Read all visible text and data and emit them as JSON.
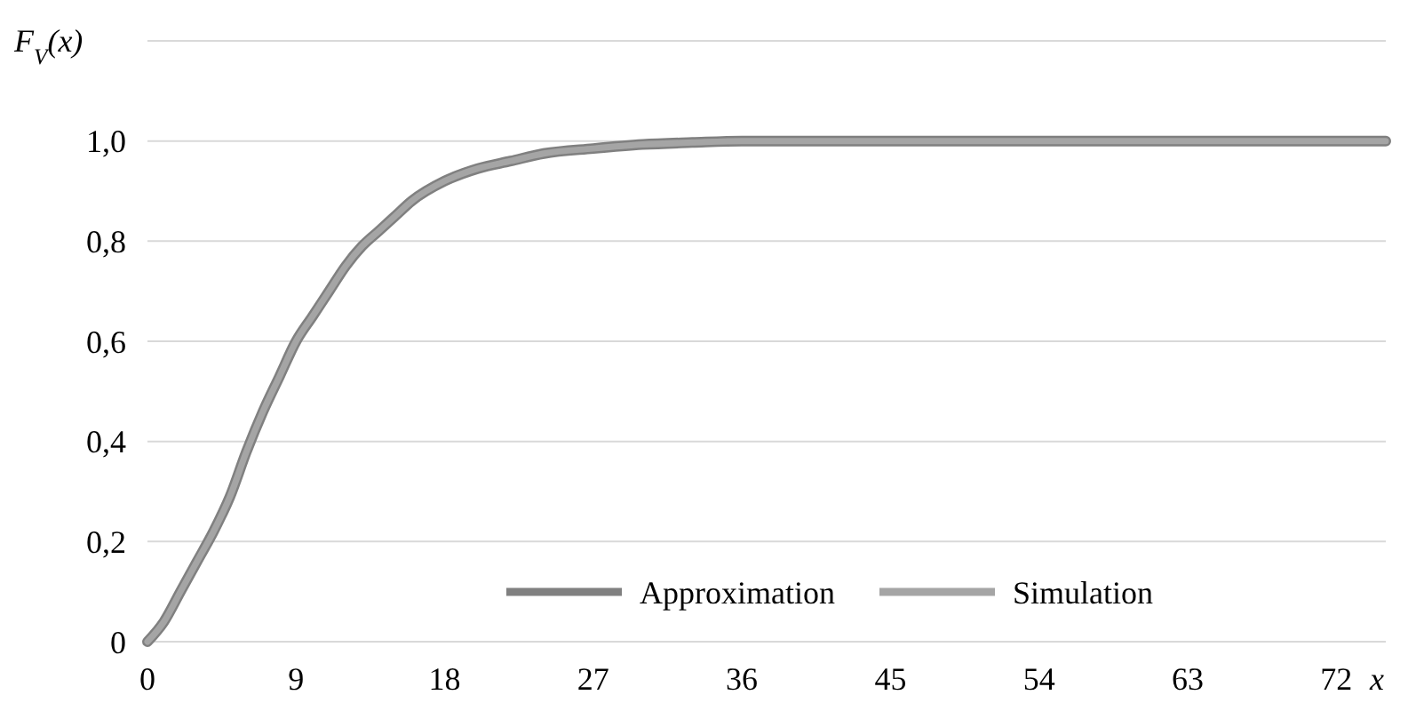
{
  "chart_data": {
    "type": "line",
    "ylabel": "F$_{V}$(x)",
    "xlabel": "x",
    "x": [
      0,
      1,
      2,
      3,
      4,
      5,
      6,
      7,
      8,
      9,
      10,
      11,
      12,
      13,
      14,
      15,
      16,
      18,
      20,
      22,
      24,
      27,
      30,
      33,
      36,
      45,
      54,
      63,
      72,
      75
    ],
    "series": [
      {
        "name": "Approximation",
        "color": "#808080",
        "values": [
          0,
          0.04,
          0.1,
          0.16,
          0.22,
          0.29,
          0.38,
          0.46,
          0.53,
          0.6,
          0.65,
          0.7,
          0.75,
          0.79,
          0.82,
          0.85,
          0.88,
          0.92,
          0.945,
          0.96,
          0.975,
          0.985,
          0.993,
          0.997,
          1,
          1,
          1,
          1,
          1,
          1
        ]
      },
      {
        "name": "Simulation",
        "color": "#a5a5a5",
        "values": [
          0,
          0.04,
          0.1,
          0.16,
          0.22,
          0.29,
          0.38,
          0.46,
          0.53,
          0.6,
          0.65,
          0.7,
          0.75,
          0.79,
          0.82,
          0.85,
          0.88,
          0.92,
          0.945,
          0.96,
          0.975,
          0.985,
          0.993,
          0.997,
          1,
          1,
          1,
          1,
          1,
          1
        ]
      }
    ],
    "xlim": [
      0,
      75
    ],
    "xticks": [
      0,
      9,
      18,
      27,
      36,
      45,
      54,
      63,
      72
    ],
    "ylim": [
      0,
      1.2
    ],
    "yticks": [
      {
        "value": 0,
        "label": "0"
      },
      {
        "value": 0.2,
        "label": "0,2"
      },
      {
        "value": 0.4,
        "label": "0,4"
      },
      {
        "value": 0.6,
        "label": "0,6"
      },
      {
        "value": 0.8,
        "label": "0,8"
      },
      {
        "value": 1,
        "label": "1,0"
      },
      {
        "value": 1.2,
        "label": null
      }
    ],
    "grid": "y",
    "legend": "bottom right",
    "marker": "none",
    "line_style": "solid"
  }
}
